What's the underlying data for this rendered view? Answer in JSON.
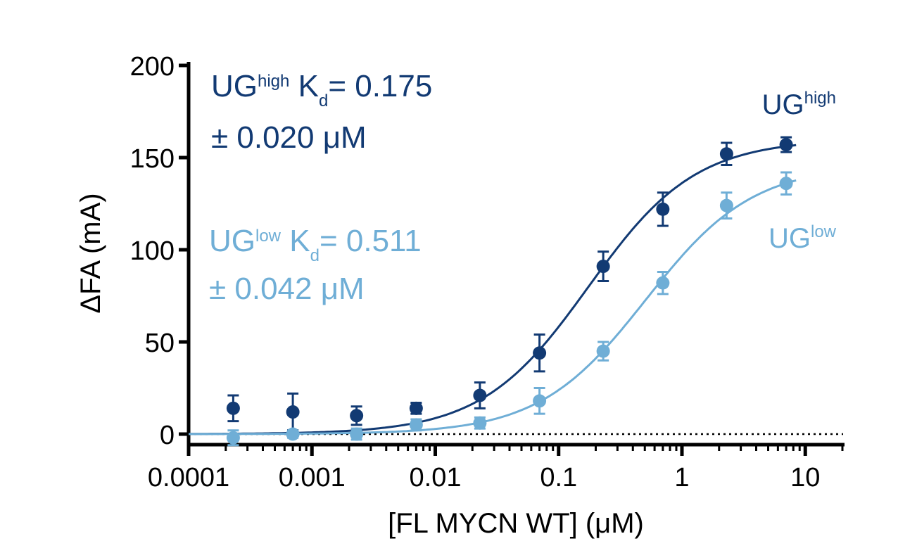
{
  "chart_data": {
    "type": "scatter",
    "xlabel": "[FL MYCN WT] (μM)",
    "ylabel": "ΔFA (mA)",
    "xscale": "log",
    "xlim": [
      0.0001,
      20
    ],
    "ylim": [
      0,
      200
    ],
    "x_ticks": [
      0.0001,
      0.001,
      0.01,
      0.1,
      1,
      10
    ],
    "x_tick_labels": [
      "0.0001",
      "0.001",
      "0.01",
      "0.1",
      "1",
      "10"
    ],
    "y_ticks": [
      0,
      50,
      100,
      150,
      200
    ],
    "y_tick_labels": [
      "0",
      "50",
      "100",
      "150",
      "200"
    ],
    "baseline": {
      "y": 0,
      "style": "dotted"
    },
    "series": [
      {
        "name": "UGhigh",
        "label_base": "UG",
        "label_sup": "high",
        "color": "#123a73",
        "kd": 0.175,
        "fit_top": 160,
        "points": [
          {
            "x": 0.00023,
            "y": 14,
            "err": 7
          },
          {
            "x": 0.0007,
            "y": 12,
            "err": 10
          },
          {
            "x": 0.0023,
            "y": 10,
            "err": 5
          },
          {
            "x": 0.007,
            "y": 14,
            "err": 3
          },
          {
            "x": 0.023,
            "y": 21,
            "err": 7
          },
          {
            "x": 0.07,
            "y": 44,
            "err": 10
          },
          {
            "x": 0.23,
            "y": 91,
            "err": 8
          },
          {
            "x": 0.7,
            "y": 122,
            "err": 9
          },
          {
            "x": 2.3,
            "y": 152,
            "err": 6
          },
          {
            "x": 7,
            "y": 157,
            "err": 4
          }
        ]
      },
      {
        "name": "UGlow",
        "label_base": "UG",
        "label_sup": "low",
        "color": "#6faed6",
        "kd": 0.511,
        "fit_top": 146,
        "points": [
          {
            "x": 0.00023,
            "y": -2,
            "err": 4
          },
          {
            "x": 0.0007,
            "y": 0,
            "err": 2
          },
          {
            "x": 0.0023,
            "y": 0,
            "err": 3
          },
          {
            "x": 0.007,
            "y": 5,
            "err": 3
          },
          {
            "x": 0.023,
            "y": 6,
            "err": 3
          },
          {
            "x": 0.07,
            "y": 18,
            "err": 7
          },
          {
            "x": 0.23,
            "y": 45,
            "err": 5
          },
          {
            "x": 0.7,
            "y": 82,
            "err": 6
          },
          {
            "x": 2.3,
            "y": 124,
            "err": 7
          },
          {
            "x": 7,
            "y": 136,
            "err": 6
          }
        ]
      }
    ],
    "annotations": [
      {
        "color": "#123a73",
        "line1_prefix": "UG",
        "line1_sup": "high",
        "line1_k": " K",
        "line1_sub": "d",
        "line1_value": "= 0.175",
        "line2": "± 0.020 μM"
      },
      {
        "color": "#6faed6",
        "line1_prefix": "UG",
        "line1_sup": "low",
        "line1_k": " K",
        "line1_sub": "d",
        "line1_value": "= 0.511",
        "line2": "± 0.042 μM"
      }
    ]
  }
}
